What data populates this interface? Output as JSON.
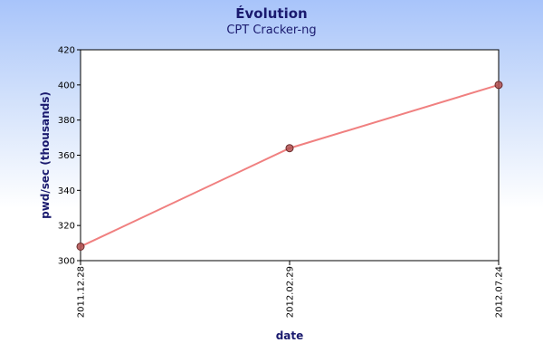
{
  "chart_data": {
    "type": "line",
    "title": "Évolution",
    "subtitle": "CPT Cracker-ng",
    "xlabel": "date",
    "ylabel": "pwd/sec (thousands)",
    "x": [
      "2011.12.28",
      "2012.02.29",
      "2012.07.24"
    ],
    "series": [
      {
        "values": [
          308,
          364,
          400
        ]
      }
    ],
    "ylim": [
      300,
      420
    ],
    "yticks": [
      300,
      320,
      340,
      360,
      380,
      400,
      420
    ],
    "grid": false,
    "legend": "none",
    "colors": {
      "line": "#f08080",
      "marker_fill": "#b05050",
      "marker_stroke": "#6a2a2a",
      "title": "#1a1a6e",
      "plot_background": "#ffffff"
    }
  }
}
